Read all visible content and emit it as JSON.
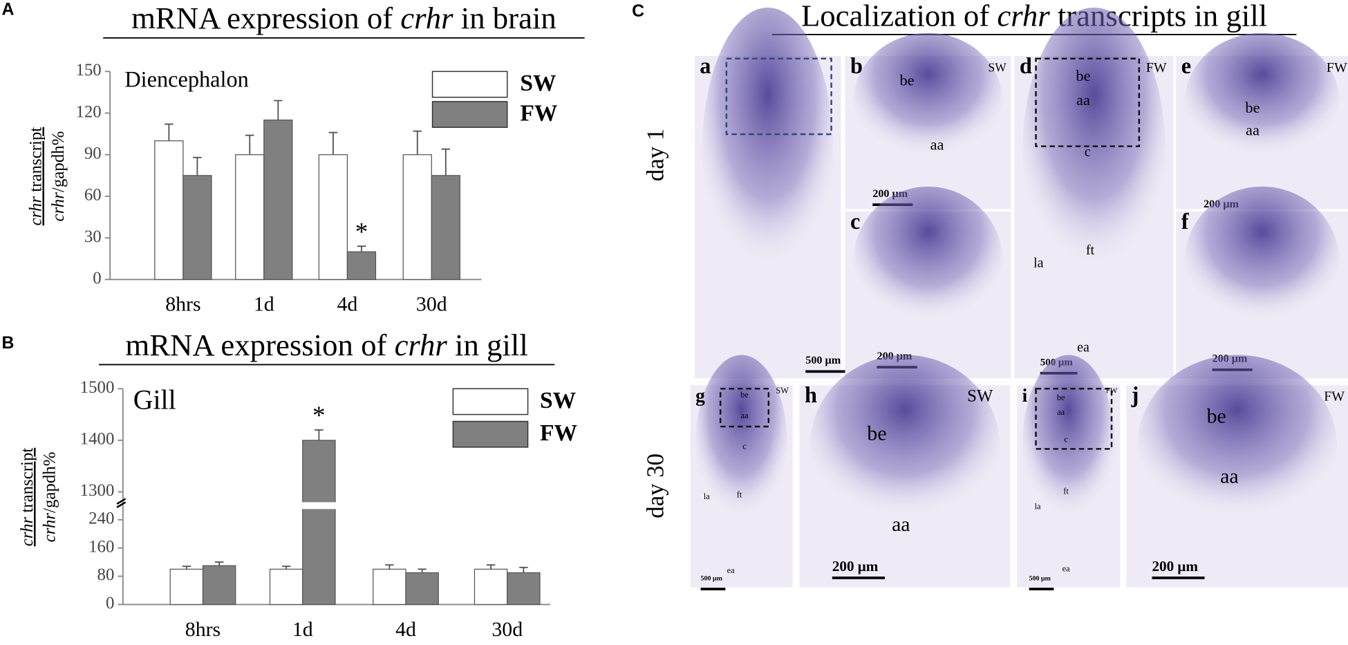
{
  "panel_labels": [
    "A",
    "B",
    "C"
  ],
  "chart_data": [
    {
      "type": "bar",
      "title": [
        "mRNA expression of ",
        "crhr",
        " in brain"
      ],
      "annotation": "Diencephalon",
      "ylabel": {
        "numerator": [
          "crhr",
          " transcript"
        ],
        "denominator": [
          "crhr",
          "/gapdh%"
        ]
      },
      "categories": [
        "8hrs",
        "1d",
        "4d",
        "30d"
      ],
      "series": [
        {
          "name": "SW",
          "color": "#ffffff",
          "values": [
            100,
            90,
            90,
            90
          ],
          "errors": [
            12,
            14,
            16,
            17
          ],
          "significance": [
            null,
            null,
            null,
            null
          ]
        },
        {
          "name": "FW",
          "color": "#808080",
          "values": [
            75,
            115,
            20,
            75
          ],
          "errors": [
            13,
            14,
            4,
            19
          ],
          "significance": [
            null,
            null,
            "*",
            null
          ]
        }
      ],
      "ylim": [
        0,
        150
      ],
      "yticks": [
        0,
        30,
        60,
        90,
        120,
        150
      ],
      "legend": "upper right"
    },
    {
      "type": "bar",
      "title": [
        "mRNA expression of ",
        "crhr",
        " in gill"
      ],
      "annotation": "Gill",
      "ylabel": {
        "numerator": [
          "crhr",
          " transcript"
        ],
        "denominator": [
          "crhr",
          "/gapdh%"
        ]
      },
      "categories": [
        "8hrs",
        "1d",
        "4d",
        "30d"
      ],
      "series": [
        {
          "name": "SW",
          "color": "#ffffff",
          "values": [
            100,
            100,
            100,
            100
          ],
          "errors": [
            8,
            8,
            12,
            12
          ],
          "significance": [
            null,
            null,
            null,
            null
          ]
        },
        {
          "name": "FW",
          "color": "#808080",
          "values": [
            110,
            1400,
            90,
            90
          ],
          "errors": [
            10,
            20,
            10,
            15
          ],
          "significance": [
            null,
            "*",
            null,
            null
          ]
        }
      ],
      "ylim": [
        0,
        1500
      ],
      "axis_break": [
        280,
        1280
      ],
      "yticks": [
        0,
        80,
        160,
        240,
        1300,
        1400,
        1500
      ],
      "legend": "upper right"
    }
  ],
  "panel_c": {
    "title": [
      "Localization of ",
      "crhr",
      " transcripts in gill"
    ],
    "rows": [
      "day 1",
      "day 30"
    ],
    "images": [
      {
        "letter": "a",
        "labels": [
          "500 μm"
        ]
      },
      {
        "letter": "b",
        "labels": [
          "SW",
          "be",
          "aa",
          "200 μm"
        ]
      },
      {
        "letter": "c",
        "labels": [
          "200 μm"
        ]
      },
      {
        "letter": "d",
        "labels": [
          "FW",
          "be",
          "aa",
          "c",
          "la",
          "ft",
          "ea",
          "500 μm"
        ]
      },
      {
        "letter": "e",
        "labels": [
          "FW",
          "be",
          "aa",
          "200 μm"
        ]
      },
      {
        "letter": "f",
        "labels": [
          "200 μm"
        ]
      },
      {
        "letter": "g",
        "labels": [
          "SW",
          "be",
          "aa",
          "c",
          "la",
          "ft",
          "ea",
          "500 μm"
        ]
      },
      {
        "letter": "h",
        "labels": [
          "SW",
          "be",
          "aa",
          "200 μm"
        ]
      },
      {
        "letter": "i",
        "labels": [
          "FW",
          "be",
          "aa",
          "c",
          "la",
          "ft",
          "ea",
          "500 μm"
        ]
      },
      {
        "letter": "j",
        "labels": [
          "FW",
          "be",
          "aa",
          "200 μm"
        ]
      }
    ]
  }
}
